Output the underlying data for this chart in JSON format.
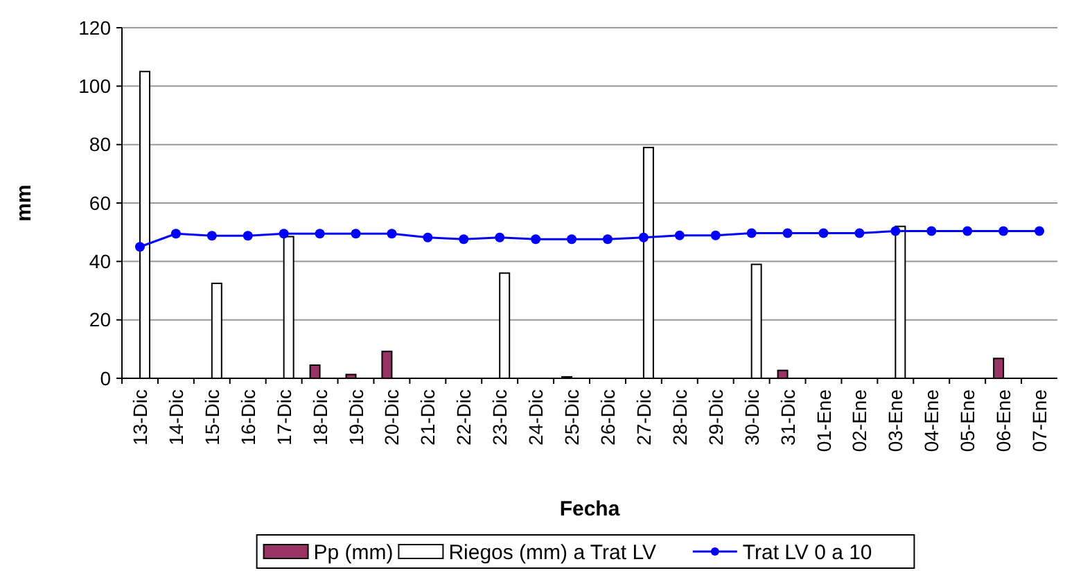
{
  "chart_data": {
    "type": "bar",
    "xlabel": "Fecha",
    "ylabel": "mm",
    "categories": [
      "13-Dic",
      "14-Dic",
      "15-Dic",
      "16-Dic",
      "17-Dic",
      "18-Dic",
      "19-Dic",
      "20-Dic",
      "21-Dic",
      "22-Dic",
      "23-Dic",
      "24-Dic",
      "25-Dic",
      "26-Dic",
      "27-Dic",
      "28-Dic",
      "29-Dic",
      "30-Dic",
      "31-Dic",
      "01-Ene",
      "02-Ene",
      "03-Ene",
      "04-Ene",
      "05-Ene",
      "06-Ene",
      "07-Ene"
    ],
    "series": [
      {
        "name": "Pp (mm)",
        "color": "#993366",
        "values": [
          null,
          null,
          null,
          null,
          null,
          4.5,
          1.3,
          9.2,
          null,
          null,
          null,
          null,
          0.5,
          null,
          null,
          null,
          null,
          null,
          2.7,
          null,
          null,
          null,
          null,
          null,
          6.8,
          null
        ]
      },
      {
        "name": "Riegos (mm) a Trat LV",
        "color": "#ffffff",
        "values": [
          105,
          null,
          32.5,
          null,
          48.5,
          null,
          null,
          null,
          null,
          null,
          36,
          null,
          null,
          null,
          79,
          null,
          null,
          39,
          null,
          null,
          null,
          52,
          null,
          null,
          null,
          null
        ]
      },
      {
        "name": "Trat LV 0 a 10",
        "type": "line",
        "color": "#0000ff",
        "marker": "circle",
        "values": [
          45,
          49.5,
          48.8,
          48.8,
          49.5,
          49.5,
          49.5,
          49.5,
          48.2,
          47.6,
          48.2,
          47.6,
          47.6,
          47.6,
          48.2,
          48.9,
          48.9,
          49.7,
          49.7,
          49.7,
          49.7,
          50.4,
          50.4,
          50.4,
          50.4,
          50.4
        ]
      }
    ],
    "ylim": [
      0,
      120
    ],
    "yticks": [
      0,
      20,
      40,
      60,
      80,
      100,
      120
    ],
    "grid": "y",
    "legend": "bottom"
  }
}
